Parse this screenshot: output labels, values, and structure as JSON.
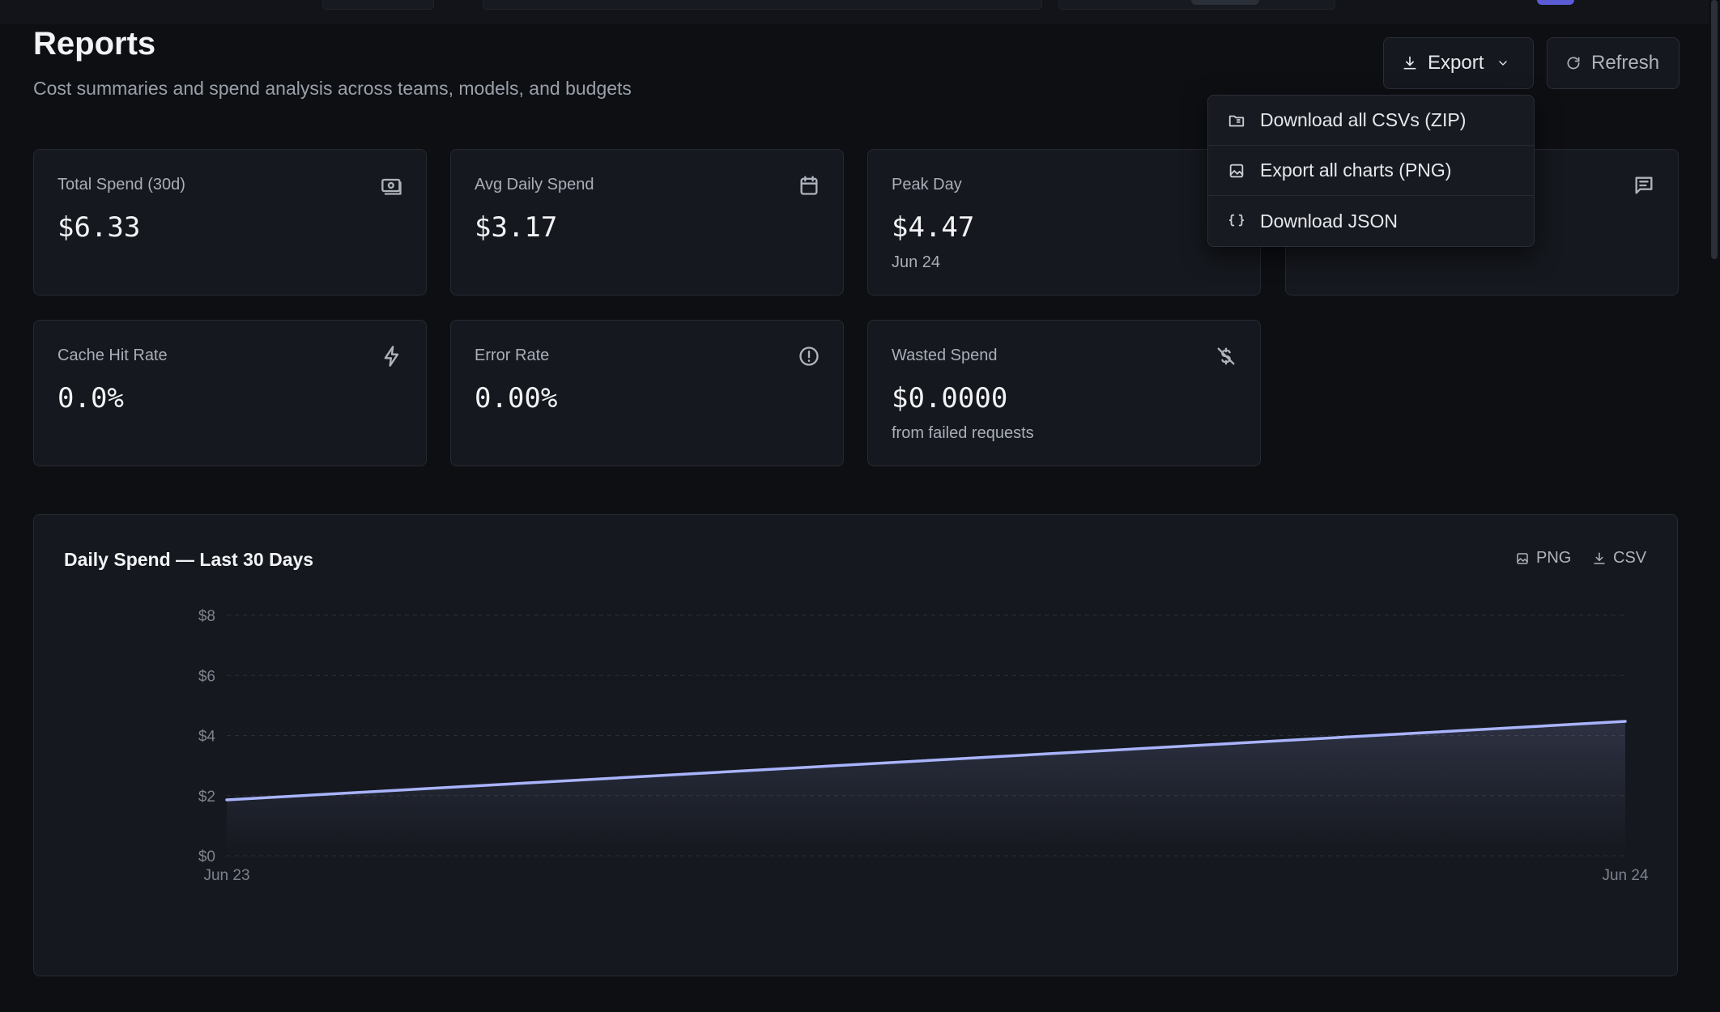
{
  "header": {
    "title": "Reports",
    "subtitle": "Cost summaries and spend analysis across teams, models, and budgets",
    "export_label": "Export",
    "refresh_label": "Refresh"
  },
  "export_menu": {
    "items": [
      {
        "label": "Download all CSVs (ZIP)",
        "icon": "folder-zip-icon"
      },
      {
        "label": "Export all charts (PNG)",
        "icon": "image-icon"
      },
      {
        "label": "Download JSON",
        "icon": "braces-icon"
      }
    ]
  },
  "stats": [
    {
      "label": "Total Spend (30d)",
      "value": "$6.33",
      "sub": "",
      "icon": "money-icon"
    },
    {
      "label": "Avg Daily Spend",
      "value": "$3.17",
      "sub": "",
      "icon": "calendar-icon"
    },
    {
      "label": "Peak Day",
      "value": "$4.47",
      "sub": "Jun 24",
      "icon": "trending-icon"
    },
    {
      "label": "",
      "value": "",
      "sub": "",
      "icon": "message-icon"
    },
    {
      "label": "Cache Hit Rate",
      "value": "0.0%",
      "sub": "",
      "icon": "bolt-icon"
    },
    {
      "label": "Error Rate",
      "value": "0.00%",
      "sub": "",
      "icon": "alert-circle-icon"
    },
    {
      "label": "Wasted Spend",
      "value": "$0.0000",
      "sub": "from failed requests",
      "icon": "dollar-off-icon"
    }
  ],
  "chart_section": {
    "title": "Daily Spend — Last 30 Days",
    "png_label": "PNG",
    "csv_label": "CSV"
  },
  "chart_data": {
    "type": "area",
    "title": "Daily Spend — Last 30 Days",
    "x": [
      "Jun 23",
      "Jun 24"
    ],
    "series": [
      {
        "values": [
          1.86,
          4.47
        ]
      }
    ],
    "xlabel": "",
    "ylabel": "",
    "ylim": [
      0,
      8
    ],
    "yticks": [
      0,
      2,
      4,
      6,
      8
    ],
    "ytick_labels": [
      "$0",
      "$2",
      "$4",
      "$6",
      "$8"
    ],
    "grid": true,
    "line_color": "#a9b4ff"
  },
  "colors": {
    "background": "#0d0f13",
    "card": "#15181e",
    "accent": "#5b5bd6",
    "line": "#a9b4ff"
  }
}
